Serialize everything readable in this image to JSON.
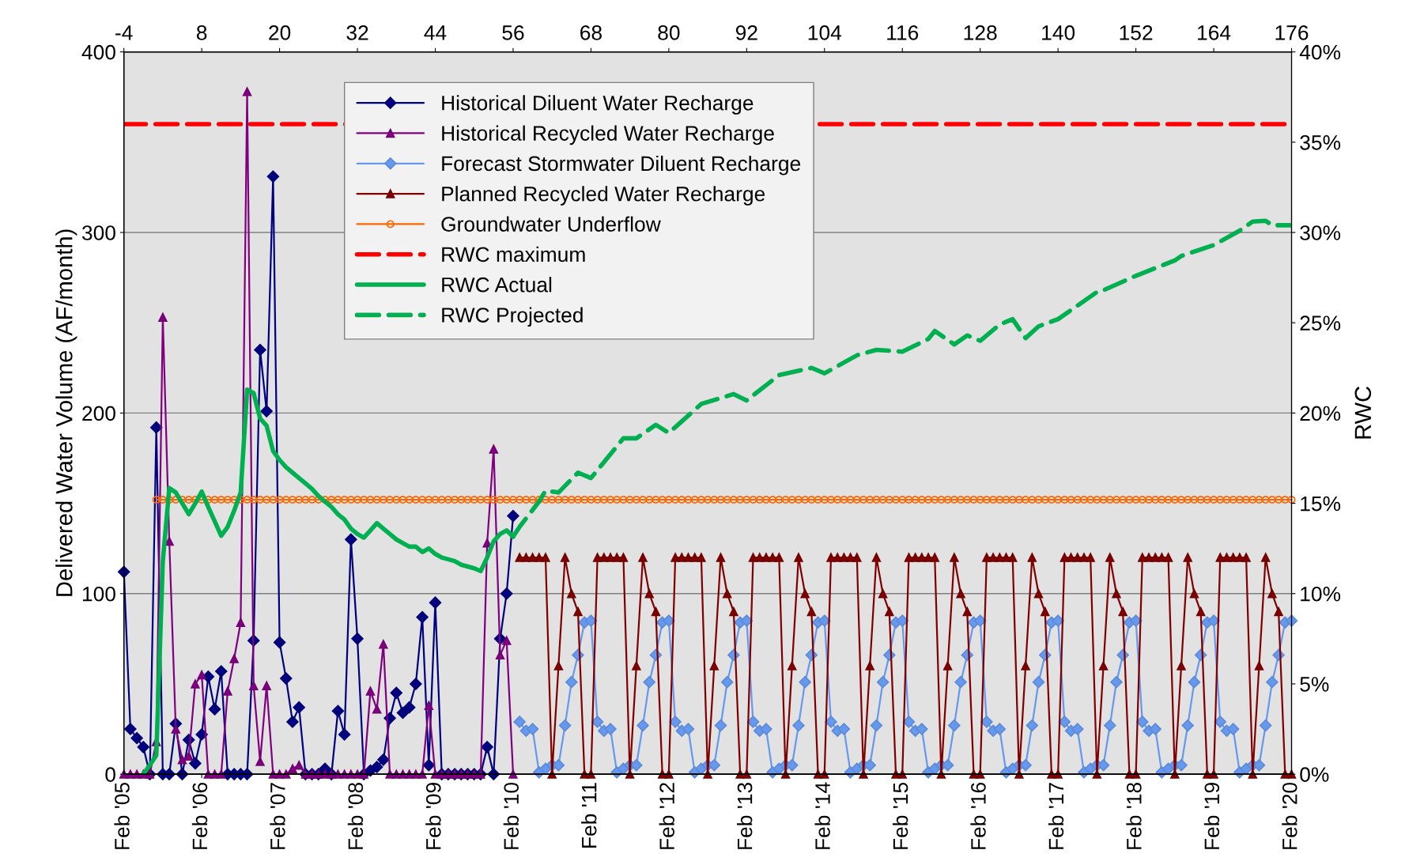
{
  "chart_data": {
    "type": "line",
    "ylabel": "Delivered Water Volume (AF/month)",
    "y2label": "RWC",
    "xlim": [
      "2005-02",
      "2020-02"
    ],
    "xticks": [
      {
        "value": "2005-02",
        "label": "Feb '05"
      },
      {
        "value": "2006-02",
        "label": "Feb '06"
      },
      {
        "value": "2007-02",
        "label": "Feb '07"
      },
      {
        "value": "2008-02",
        "label": "Feb '08"
      },
      {
        "value": "2009-02",
        "label": "Feb '09"
      },
      {
        "value": "2010-02",
        "label": "Feb '10"
      },
      {
        "value": "2011-02",
        "label": "Feb '11"
      },
      {
        "value": "2012-02",
        "label": "Feb '12"
      },
      {
        "value": "2013-02",
        "label": "Feb '13"
      },
      {
        "value": "2014-02",
        "label": "Feb '14"
      },
      {
        "value": "2015-02",
        "label": "Feb '15"
      },
      {
        "value": "2016-02",
        "label": "Feb '16"
      },
      {
        "value": "2017-02",
        "label": "Feb '17"
      },
      {
        "value": "2018-02",
        "label": "Feb '18"
      },
      {
        "value": "2019-02",
        "label": "Feb '19"
      },
      {
        "value": "2020-02",
        "label": "Feb '20"
      }
    ],
    "x2lim": [
      -4,
      176
    ],
    "x2ticks": [
      -4,
      8,
      20,
      32,
      44,
      56,
      68,
      80,
      92,
      104,
      116,
      128,
      140,
      152,
      164,
      176
    ],
    "ylim": [
      0,
      400
    ],
    "yticks": [
      0,
      100,
      200,
      300,
      400
    ],
    "y2lim": [
      0,
      40
    ],
    "y2ticks": [
      {
        "value": 0,
        "label": "0%"
      },
      {
        "value": 5,
        "label": "5%"
      },
      {
        "value": 10,
        "label": "10%"
      },
      {
        "value": 15,
        "label": "15%"
      },
      {
        "value": 20,
        "label": "20%"
      },
      {
        "value": 25,
        "label": "25%"
      },
      {
        "value": 30,
        "label": "30%"
      },
      {
        "value": 35,
        "label": "35%"
      },
      {
        "value": 40,
        "label": "40%"
      }
    ],
    "grid": "y",
    "legend": "top left",
    "series": [
      {
        "name": "Historical Diluent Water Recharge",
        "color": "#000080",
        "marker": "diamond",
        "x": [
          "2005-02",
          "2005-03",
          "2005-04",
          "2005-05",
          "2005-06",
          "2005-07",
          "2005-08",
          "2005-09",
          "2005-10",
          "2005-11",
          "2005-12",
          "2006-01",
          "2006-02",
          "2006-03",
          "2006-04",
          "2006-05",
          "2006-06",
          "2006-07",
          "2006-08",
          "2006-09",
          "2006-10",
          "2006-11",
          "2006-12",
          "2007-01",
          "2007-02",
          "2007-03",
          "2007-04",
          "2007-05",
          "2007-06",
          "2007-07",
          "2007-08",
          "2007-09",
          "2007-10",
          "2007-11",
          "2007-12",
          "2008-01",
          "2008-02",
          "2008-03",
          "2008-04",
          "2008-05",
          "2008-06",
          "2008-07",
          "2008-08",
          "2008-09",
          "2008-10",
          "2008-11",
          "2008-12",
          "2009-01",
          "2009-02",
          "2009-03",
          "2009-04",
          "2009-05",
          "2009-06",
          "2009-07",
          "2009-08",
          "2009-09",
          "2009-10",
          "2009-11",
          "2009-12",
          "2010-01",
          "2010-02"
        ],
        "values": [
          112,
          25,
          20,
          15,
          0,
          192,
          0,
          0,
          28,
          0,
          19,
          6,
          22,
          54,
          36,
          57,
          0,
          0,
          0,
          0,
          74,
          235,
          201,
          331,
          73,
          53,
          29,
          37,
          0,
          0,
          0,
          3,
          0,
          35,
          22,
          130,
          75,
          0,
          2,
          4,
          8,
          31,
          45,
          34,
          37,
          50,
          87,
          5,
          95,
          0,
          0,
          0,
          0,
          0,
          0,
          0,
          15,
          0,
          75,
          100,
          143
        ]
      },
      {
        "name": "Historical Recycled Water Recharge",
        "color": "#800080",
        "marker": "triangle",
        "x": [
          "2005-02",
          "2005-03",
          "2005-04",
          "2005-05",
          "2005-06",
          "2005-07",
          "2005-08",
          "2005-09",
          "2005-10",
          "2005-11",
          "2005-12",
          "2006-01",
          "2006-02",
          "2006-03",
          "2006-04",
          "2006-05",
          "2006-06",
          "2006-07",
          "2006-08",
          "2006-09",
          "2006-10",
          "2006-11",
          "2006-12",
          "2007-01",
          "2007-02",
          "2007-03",
          "2007-04",
          "2007-05",
          "2007-06",
          "2007-07",
          "2007-08",
          "2007-09",
          "2007-10",
          "2007-11",
          "2007-12",
          "2008-01",
          "2008-02",
          "2008-03",
          "2008-04",
          "2008-05",
          "2008-06",
          "2008-07",
          "2008-08",
          "2008-09",
          "2008-10",
          "2008-11",
          "2008-12",
          "2009-01",
          "2009-02",
          "2009-03",
          "2009-04",
          "2009-05",
          "2009-06",
          "2009-07",
          "2009-08",
          "2009-09",
          "2009-10",
          "2009-11",
          "2009-12",
          "2010-01",
          "2010-02"
        ],
        "values": [
          0,
          0,
          0,
          0,
          0,
          18,
          253,
          129,
          25,
          8,
          10,
          50,
          55,
          0,
          0,
          0,
          46,
          64,
          84,
          378,
          49,
          7,
          49,
          0,
          0,
          0,
          3,
          5,
          0,
          0,
          0,
          0,
          0,
          0,
          0,
          0,
          0,
          0,
          46,
          36,
          72,
          0,
          0,
          0,
          0,
          0,
          0,
          38,
          0,
          0,
          0,
          0,
          0,
          0,
          0,
          0,
          128,
          180,
          66,
          74,
          0
        ]
      },
      {
        "name": "Forecast Stormwater Diluent Recharge",
        "color": "#6699ee",
        "marker": "diamond",
        "x": [
          "2010-03",
          "2010-04",
          "2010-05",
          "2010-06",
          "2010-07",
          "2010-08",
          "2010-09",
          "2010-10",
          "2010-11",
          "2010-12",
          "2011-01",
          "2011-02",
          "2011-03",
          "2011-04",
          "2011-05",
          "2011-06",
          "2011-07",
          "2011-08",
          "2011-09",
          "2011-10",
          "2011-11",
          "2011-12",
          "2012-01",
          "2012-02",
          "2012-03",
          "2012-04",
          "2012-05",
          "2012-06",
          "2012-07",
          "2012-08",
          "2012-09",
          "2012-10",
          "2012-11",
          "2012-12",
          "2013-01",
          "2013-02",
          "2013-03",
          "2013-04",
          "2013-05",
          "2013-06",
          "2013-07",
          "2013-08",
          "2013-09",
          "2013-10",
          "2013-11",
          "2013-12",
          "2014-01",
          "2014-02",
          "2014-03",
          "2014-04",
          "2014-05",
          "2014-06",
          "2014-07",
          "2014-08",
          "2014-09",
          "2014-10",
          "2014-11",
          "2014-12",
          "2015-01",
          "2015-02",
          "2015-03",
          "2015-04",
          "2015-05",
          "2015-06",
          "2015-07",
          "2015-08",
          "2015-09",
          "2015-10",
          "2015-11",
          "2015-12",
          "2016-01",
          "2016-02",
          "2016-03",
          "2016-04",
          "2016-05",
          "2016-06",
          "2016-07",
          "2016-08",
          "2016-09",
          "2016-10",
          "2016-11",
          "2016-12",
          "2017-01",
          "2017-02",
          "2017-03",
          "2017-04",
          "2017-05",
          "2017-06",
          "2017-07",
          "2017-08",
          "2017-09",
          "2017-10",
          "2017-11",
          "2017-12",
          "2018-01",
          "2018-02",
          "2018-03",
          "2018-04",
          "2018-05",
          "2018-06",
          "2018-07",
          "2018-08",
          "2018-09",
          "2018-10",
          "2018-11",
          "2018-12",
          "2019-01",
          "2019-02",
          "2019-03",
          "2019-04",
          "2019-05",
          "2019-06",
          "2019-07",
          "2019-08",
          "2019-09",
          "2019-10",
          "2019-11",
          "2019-12",
          "2020-01",
          "2020-02"
        ],
        "values": [
          29,
          24,
          25,
          1,
          3,
          5,
          5,
          27,
          51,
          66,
          84,
          85,
          29,
          24,
          25,
          1,
          3,
          5,
          5,
          27,
          51,
          66,
          84,
          85,
          29,
          24,
          25,
          1,
          3,
          5,
          5,
          27,
          51,
          66,
          84,
          85,
          29,
          24,
          25,
          1,
          3,
          5,
          5,
          27,
          51,
          66,
          84,
          85,
          29,
          24,
          25,
          1,
          3,
          5,
          5,
          27,
          51,
          66,
          84,
          85,
          29,
          24,
          25,
          1,
          3,
          5,
          5,
          27,
          51,
          66,
          84,
          85,
          29,
          24,
          25,
          1,
          3,
          5,
          5,
          27,
          51,
          66,
          84,
          85,
          29,
          24,
          25,
          1,
          3,
          5,
          5,
          27,
          51,
          66,
          84,
          85,
          29,
          24,
          25,
          1,
          3,
          5,
          5,
          27,
          51,
          66,
          84,
          85,
          29,
          24,
          25,
          1,
          3,
          5,
          5,
          27,
          51,
          66,
          84,
          85
        ]
      },
      {
        "name": "Planned Recycled Water Recharge",
        "color": "#800000",
        "marker": "triangle",
        "x": [
          "2010-03",
          "2010-04",
          "2010-05",
          "2010-06",
          "2010-07",
          "2010-08",
          "2010-09",
          "2010-10",
          "2010-11",
          "2010-12",
          "2011-01",
          "2011-02",
          "2011-03",
          "2011-04",
          "2011-05",
          "2011-06",
          "2011-07",
          "2011-08",
          "2011-09",
          "2011-10",
          "2011-11",
          "2011-12",
          "2012-01",
          "2012-02",
          "2012-03",
          "2012-04",
          "2012-05",
          "2012-06",
          "2012-07",
          "2012-08",
          "2012-09",
          "2012-10",
          "2012-11",
          "2012-12",
          "2013-01",
          "2013-02",
          "2013-03",
          "2013-04",
          "2013-05",
          "2013-06",
          "2013-07",
          "2013-08",
          "2013-09",
          "2013-10",
          "2013-11",
          "2013-12",
          "2014-01",
          "2014-02",
          "2014-03",
          "2014-04",
          "2014-05",
          "2014-06",
          "2014-07",
          "2014-08",
          "2014-09",
          "2014-10",
          "2014-11",
          "2014-12",
          "2015-01",
          "2015-02",
          "2015-03",
          "2015-04",
          "2015-05",
          "2015-06",
          "2015-07",
          "2015-08",
          "2015-09",
          "2015-10",
          "2015-11",
          "2015-12",
          "2016-01",
          "2016-02",
          "2016-03",
          "2016-04",
          "2016-05",
          "2016-06",
          "2016-07",
          "2016-08",
          "2016-09",
          "2016-10",
          "2016-11",
          "2016-12",
          "2017-01",
          "2017-02",
          "2017-03",
          "2017-04",
          "2017-05",
          "2017-06",
          "2017-07",
          "2017-08",
          "2017-09",
          "2017-10",
          "2017-11",
          "2017-12",
          "2018-01",
          "2018-02",
          "2018-03",
          "2018-04",
          "2018-05",
          "2018-06",
          "2018-07",
          "2018-08",
          "2018-09",
          "2018-10",
          "2018-11",
          "2018-12",
          "2019-01",
          "2019-02",
          "2019-03",
          "2019-04",
          "2019-05",
          "2019-06",
          "2019-07",
          "2019-08",
          "2019-09",
          "2019-10",
          "2019-11",
          "2019-12",
          "2020-01",
          "2020-02"
        ],
        "values": [
          120,
          120,
          120,
          120,
          120,
          0,
          60,
          120,
          100,
          90,
          0,
          0,
          120,
          120,
          120,
          120,
          120,
          0,
          60,
          120,
          100,
          90,
          0,
          0,
          120,
          120,
          120,
          120,
          120,
          0,
          60,
          120,
          100,
          90,
          0,
          0,
          120,
          120,
          120,
          120,
          120,
          0,
          60,
          120,
          100,
          90,
          0,
          0,
          120,
          120,
          120,
          120,
          120,
          0,
          60,
          120,
          100,
          90,
          0,
          0,
          120,
          120,
          120,
          120,
          120,
          0,
          60,
          120,
          100,
          90,
          0,
          0,
          120,
          120,
          120,
          120,
          120,
          0,
          60,
          120,
          100,
          90,
          0,
          0,
          120,
          120,
          120,
          120,
          120,
          0,
          60,
          120,
          100,
          90,
          0,
          0,
          120,
          120,
          120,
          120,
          120,
          0,
          60,
          120,
          100,
          90,
          0,
          0,
          120,
          120,
          120,
          120,
          120,
          0,
          60,
          120,
          100,
          90,
          0,
          0
        ]
      },
      {
        "name": "Groundwater Underflow",
        "color": "#ff6600",
        "marker": "circle",
        "x": [
          "2005-07",
          "2005-08",
          "2005-09",
          "2005-10",
          "2005-11",
          "2005-12",
          "2006-01",
          "2006-02",
          "2006-03",
          "2006-04",
          "2006-05",
          "2006-06",
          "2006-07",
          "2006-08",
          "2006-09",
          "2006-10",
          "2006-11",
          "2006-12",
          "2007-01",
          "2007-02",
          "2007-03",
          "2007-04",
          "2007-05",
          "2007-06",
          "2007-07",
          "2007-08",
          "2007-09",
          "2007-10",
          "2007-11",
          "2007-12",
          "2008-01",
          "2008-02",
          "2008-03",
          "2008-04",
          "2008-05",
          "2008-06",
          "2008-07",
          "2008-08",
          "2008-09",
          "2008-10",
          "2008-11",
          "2008-12",
          "2009-01",
          "2009-02",
          "2009-03",
          "2009-04",
          "2009-05",
          "2009-06",
          "2009-07",
          "2009-08",
          "2009-09",
          "2009-10",
          "2009-11",
          "2009-12",
          "2010-01",
          "2010-02",
          "2010-03",
          "2010-04",
          "2010-05",
          "2010-06",
          "2010-07",
          "2010-08",
          "2010-09",
          "2010-10",
          "2010-11",
          "2010-12",
          "2011-01",
          "2011-02",
          "2011-03",
          "2011-04",
          "2011-05",
          "2011-06",
          "2011-07",
          "2011-08",
          "2011-09",
          "2011-10",
          "2011-11",
          "2011-12",
          "2012-01",
          "2012-02",
          "2012-03",
          "2012-04",
          "2012-05",
          "2012-06",
          "2012-07",
          "2012-08",
          "2012-09",
          "2012-10",
          "2012-11",
          "2012-12",
          "2013-01",
          "2013-02",
          "2013-03",
          "2013-04",
          "2013-05",
          "2013-06",
          "2013-07",
          "2013-08",
          "2013-09",
          "2013-10",
          "2013-11",
          "2013-12",
          "2014-01",
          "2014-02",
          "2014-03",
          "2014-04",
          "2014-05",
          "2014-06",
          "2014-07",
          "2014-08",
          "2014-09",
          "2014-10",
          "2014-11",
          "2014-12",
          "2015-01",
          "2015-02",
          "2015-03",
          "2015-04",
          "2015-05",
          "2015-06",
          "2015-07",
          "2015-08",
          "2015-09",
          "2015-10",
          "2015-11",
          "2015-12",
          "2016-01",
          "2016-02",
          "2016-03",
          "2016-04",
          "2016-05",
          "2016-06",
          "2016-07",
          "2016-08",
          "2016-09",
          "2016-10",
          "2016-11",
          "2016-12",
          "2017-01",
          "2017-02",
          "2017-03",
          "2017-04",
          "2017-05",
          "2017-06",
          "2017-07",
          "2017-08",
          "2017-09",
          "2017-10",
          "2017-11",
          "2017-12",
          "2018-01",
          "2018-02",
          "2018-03",
          "2018-04",
          "2018-05",
          "2018-06",
          "2018-07",
          "2018-08",
          "2018-09",
          "2018-10",
          "2018-11",
          "2018-12",
          "2019-01",
          "2019-02",
          "2019-03",
          "2019-04",
          "2019-05",
          "2019-06",
          "2019-07",
          "2019-08",
          "2019-09",
          "2019-10",
          "2019-11",
          "2019-12",
          "2020-01",
          "2020-02"
        ],
        "values": [
          152,
          152,
          152,
          152,
          152,
          152,
          152,
          152,
          152,
          152,
          152,
          152,
          152,
          152,
          152,
          152,
          152,
          152,
          152,
          152,
          152,
          152,
          152,
          152,
          152,
          152,
          152,
          152,
          152,
          152,
          152,
          152,
          152,
          152,
          152,
          152,
          152,
          152,
          152,
          152,
          152,
          152,
          152,
          152,
          152,
          152,
          152,
          152,
          152,
          152,
          152,
          152,
          152,
          152,
          152,
          152,
          152,
          152,
          152,
          152,
          152,
          152,
          152,
          152,
          152,
          152,
          152,
          152,
          152,
          152,
          152,
          152,
          152,
          152,
          152,
          152,
          152,
          152,
          152,
          152,
          152,
          152,
          152,
          152,
          152,
          152,
          152,
          152,
          152,
          152,
          152,
          152,
          152,
          152,
          152,
          152,
          152,
          152,
          152,
          152,
          152,
          152,
          152,
          152,
          152,
          152,
          152,
          152,
          152,
          152,
          152,
          152,
          152,
          152,
          152,
          152,
          152,
          152,
          152,
          152,
          152,
          152,
          152,
          152,
          152,
          152,
          152,
          152,
          152,
          152,
          152,
          152,
          152,
          152,
          152,
          152,
          152,
          152,
          152,
          152,
          152,
          152,
          152,
          152,
          152,
          152,
          152,
          152,
          152,
          152,
          152,
          152,
          152,
          152,
          152,
          152,
          152,
          152,
          152,
          152,
          152,
          152,
          152,
          152,
          152,
          152,
          152,
          152,
          152,
          152,
          152,
          152,
          152,
          152,
          152,
          152
        ]
      },
      {
        "name": "RWC maximum",
        "color": "#ff0000",
        "axis": "y2",
        "line_style": "dashed",
        "x": [
          "2005-02",
          "2020-02"
        ],
        "values": [
          36,
          36
        ]
      },
      {
        "name": "RWC Actual",
        "color": "#00b050",
        "axis": "y2",
        "line_style": "solid",
        "x": [
          "2005-05",
          "2005-06",
          "2005-07",
          "2005-08",
          "2005-09",
          "2005-10",
          "2005-11",
          "2005-12",
          "2006-01",
          "2006-02",
          "2006-03",
          "2006-04",
          "2006-05",
          "2006-06",
          "2006-07",
          "2006-08",
          "2006-09",
          "2006-10",
          "2006-11",
          "2006-12",
          "2007-01",
          "2007-02",
          "2007-03",
          "2007-04",
          "2007-05",
          "2007-06",
          "2007-07",
          "2007-08",
          "2007-09",
          "2007-10",
          "2007-11",
          "2007-12",
          "2008-01",
          "2008-02",
          "2008-03",
          "2008-04",
          "2008-05",
          "2008-06",
          "2008-07",
          "2008-08",
          "2008-09",
          "2008-10",
          "2008-11",
          "2008-12",
          "2009-01",
          "2009-02",
          "2009-03",
          "2009-04",
          "2009-05",
          "2009-06",
          "2009-07",
          "2009-08",
          "2009-09",
          "2009-10",
          "2009-11",
          "2009-12",
          "2010-01",
          "2010-02"
        ],
        "values": [
          0,
          0.5,
          1.05,
          11.8,
          15.85,
          15.6,
          15.0,
          14.4,
          15.0,
          15.65,
          14.8,
          14.0,
          13.2,
          13.7,
          14.6,
          15.6,
          21.3,
          21.1,
          19.7,
          19.3,
          17.9,
          17.4,
          17.0,
          16.7,
          16.4,
          16.1,
          15.8,
          15.4,
          15.1,
          14.8,
          14.4,
          14.1,
          13.6,
          13.3,
          13.1,
          13.5,
          13.9,
          13.6,
          13.3,
          13.0,
          12.8,
          12.6,
          12.6,
          12.3,
          12.5,
          12.2,
          12.0,
          11.9,
          11.8,
          11.6,
          11.5,
          11.4,
          11.25,
          12.0,
          12.9,
          13.3,
          13.5,
          13.15
        ]
      },
      {
        "name": "RWC Projected",
        "color": "#00b050",
        "axis": "y2",
        "line_style": "dashed",
        "x": [
          "2010-02",
          "2010-03",
          "2010-06",
          "2010-07",
          "2010-09",
          "2010-12",
          "2011-02",
          "2011-07",
          "2011-09",
          "2011-12",
          "2012-02",
          "2012-07",
          "2012-12",
          "2013-02",
          "2013-07",
          "2013-12",
          "2014-02",
          "2014-07",
          "2014-10",
          "2015-02",
          "2015-06",
          "2015-07",
          "2015-10",
          "2015-12",
          "2016-02",
          "2016-05",
          "2016-07",
          "2016-09",
          "2016-11",
          "2017-02",
          "2017-08",
          "2017-09",
          "2018-02",
          "2018-08",
          "2018-09",
          "2019-02",
          "2019-06",
          "2019-08",
          "2019-10",
          "2019-11",
          "2020-02"
        ],
        "values": [
          13.15,
          13.7,
          15.1,
          15.7,
          15.6,
          16.7,
          16.4,
          18.6,
          18.6,
          19.35,
          18.9,
          20.5,
          21.05,
          20.7,
          22.1,
          22.5,
          22.2,
          23.2,
          23.5,
          23.4,
          24.1,
          24.55,
          23.8,
          24.3,
          24.0,
          24.9,
          25.2,
          24.15,
          24.8,
          25.2,
          26.7,
          26.8,
          27.6,
          28.45,
          28.7,
          29.3,
          30.1,
          30.6,
          30.65,
          30.4,
          30.4
        ]
      }
    ]
  }
}
